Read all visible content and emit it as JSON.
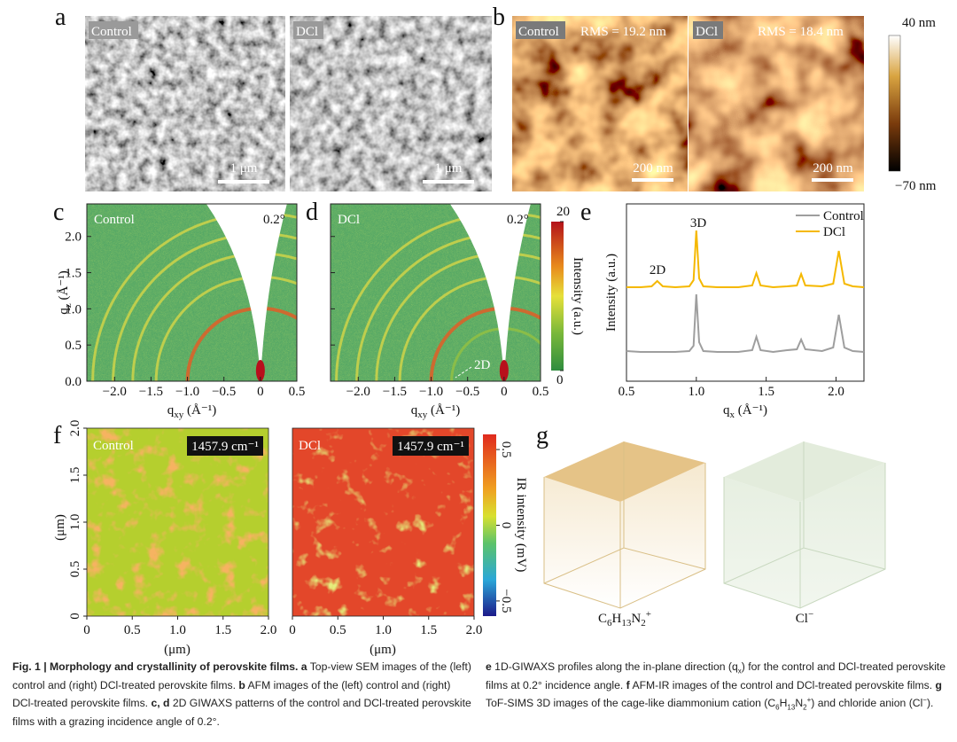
{
  "panel_a": {
    "label": "a",
    "left_tag": "Control",
    "right_tag": "DCl",
    "left_scale": "1 μm",
    "right_scale": "1 μm"
  },
  "panel_b": {
    "label": "b",
    "left_tag": "Control",
    "left_rms": "RMS = 19.2 nm",
    "right_tag": "DCl",
    "right_rms": "RMS = 18.4 nm",
    "left_scale": "200 nm",
    "right_scale": "200 nm",
    "colorbar": {
      "top": "40 nm",
      "bottom": "−70 nm"
    }
  },
  "panel_c": {
    "label": "c",
    "tag": "Control",
    "angle": "0.2°"
  },
  "panel_d": {
    "label": "d",
    "tag": "DCl",
    "angle": "0.2°",
    "annotation": "2D"
  },
  "giwaxs_axes": {
    "xlim": [
      -2.38,
      0.5
    ],
    "ylim": [
      0,
      2.45
    ],
    "xticks": [
      {
        "value": -2,
        "label": "−2.0"
      },
      {
        "value": -1.5,
        "label": "−1.5"
      },
      {
        "value": -1,
        "label": "−1.0"
      },
      {
        "value": -0.5,
        "label": "−0.5"
      },
      0,
      0.5
    ],
    "yticks": [
      {
        "value": 0,
        "label": "0.0"
      },
      0.5,
      {
        "value": 1,
        "label": "1.0"
      },
      1.5,
      {
        "value": 2,
        "label": "2.0"
      }
    ],
    "xlabel": {
      "main": "q",
      "sub": "xy",
      "rest": " (Å⁻¹)"
    },
    "ylabel": {
      "main": "q",
      "sub": "z",
      "rest": " (Å⁻¹)"
    },
    "colorbar": {
      "label": "Intensity (a.u.)",
      "lim": [
        0,
        20
      ],
      "ticks": [
        20,
        0
      ]
    }
  },
  "chart_data": {
    "type": "line",
    "label": "e",
    "xlabel": {
      "main": "q",
      "sub": "x",
      "rest": " (Å⁻¹)"
    },
    "ylabel": "Intensity (a.u.)",
    "x": [
      0.5,
      0.6,
      0.68,
      0.72,
      0.76,
      0.85,
      0.95,
      0.98,
      1.0,
      1.02,
      1.05,
      1.15,
      1.3,
      1.4,
      1.43,
      1.46,
      1.55,
      1.65,
      1.72,
      1.75,
      1.78,
      1.9,
      1.98,
      2.02,
      2.06,
      2.12,
      2.2
    ],
    "series": [
      {
        "name": "Control",
        "color": "#9e9e9e",
        "values": [
          17,
          16.5,
          16.5,
          16.5,
          16.5,
          16.5,
          17,
          20,
          49,
          22,
          17,
          16.5,
          16.5,
          17.5,
          25,
          17.5,
          16.5,
          17.5,
          18,
          23.5,
          18,
          17,
          19,
          37.5,
          19,
          17,
          16.5
        ]
      },
      {
        "name": "DCl",
        "color": "#f5b800",
        "values": [
          53,
          53,
          53.5,
          56.5,
          53.5,
          53,
          53.5,
          57,
          85,
          58,
          53.5,
          53,
          53,
          54,
          61,
          54,
          53,
          53.5,
          54,
          60.5,
          54,
          53.5,
          55,
          73.5,
          55,
          53.5,
          53
        ]
      }
    ],
    "xlim": [
      0.5,
      2.2
    ],
    "ylim": [
      0,
      100
    ],
    "xticks": [
      0.5,
      {
        "value": 1,
        "label": "1.0"
      },
      1.5,
      {
        "value": 2,
        "label": "2.0"
      }
    ],
    "annotations": [
      "3D",
      "2D"
    ]
  },
  "panel_f": {
    "label": "f",
    "left_tag": "Control",
    "right_tag": "DCl",
    "wavenumber": "1457.9 cm⁻¹",
    "lim": [
      0,
      2
    ],
    "ticks": [
      0,
      0.5,
      {
        "value": 1,
        "label": "1.0"
      },
      1.5,
      {
        "value": 2,
        "label": "2.0"
      }
    ],
    "unit": "(μm)",
    "colorbar": {
      "label": "IR intensity (mV)",
      "lim": [
        -0.6,
        0.6
      ],
      "ticks": [
        0.5,
        0,
        {
          "value": -0.5,
          "label": "−0.5"
        }
      ]
    }
  },
  "panel_g": {
    "label": "g",
    "cation": [
      {
        "text": "C"
      },
      {
        "text": "6",
        "style": "sub"
      },
      {
        "text": "H"
      },
      {
        "text": "13",
        "style": "sub"
      },
      {
        "text": "N"
      },
      {
        "text": "2",
        "style": "sub"
      },
      {
        "text": "+",
        "style": "sup"
      }
    ],
    "anion": [
      {
        "text": "Cl"
      },
      {
        "text": "−",
        "style": "sup"
      }
    ]
  },
  "caption": {
    "left": [
      {
        "text": "Fig. 1 | Morphology and crystallinity of perovskite films. ",
        "style": "bold"
      },
      {
        "text": "a",
        "style": "bold"
      },
      {
        "text": " Top-view SEM images of the (left) control and (right) DCl-treated perovskite films. "
      },
      {
        "text": "b",
        "style": "bold"
      },
      {
        "text": " AFM images of the (left) control and (right) DCl-treated perovskite films. "
      },
      {
        "text": "c, d",
        "style": "bold"
      },
      {
        "text": " 2D GIWAXS patterns of the control and DCl-treated perovskite films with a grazing incidence angle of 0.2°."
      }
    ],
    "right": [
      {
        "text": "e",
        "style": "bold"
      },
      {
        "text": " 1D-GIWAXS profiles along the in-plane direction (q"
      },
      {
        "text": "x",
        "style": "sub"
      },
      {
        "text": ") for the control and DCl-treated perovskite films at 0.2° incidence angle. "
      },
      {
        "text": "f",
        "style": "bold"
      },
      {
        "text": " AFM-IR images of the control and DCl-treated perovskite films. "
      },
      {
        "text": "g",
        "style": "bold"
      },
      {
        "text": " ToF-SIMS 3D images of the cage-like diammonium cation (C"
      },
      {
        "text": "6",
        "style": "sub"
      },
      {
        "text": "H"
      },
      {
        "text": "13",
        "style": "sub"
      },
      {
        "text": "N"
      },
      {
        "text": "2",
        "style": "sub"
      },
      {
        "text": "+",
        "style": "sup"
      },
      {
        "text": ") and chloride anion (Cl"
      },
      {
        "text": "−",
        "style": "sup"
      },
      {
        "text": ")."
      }
    ]
  }
}
